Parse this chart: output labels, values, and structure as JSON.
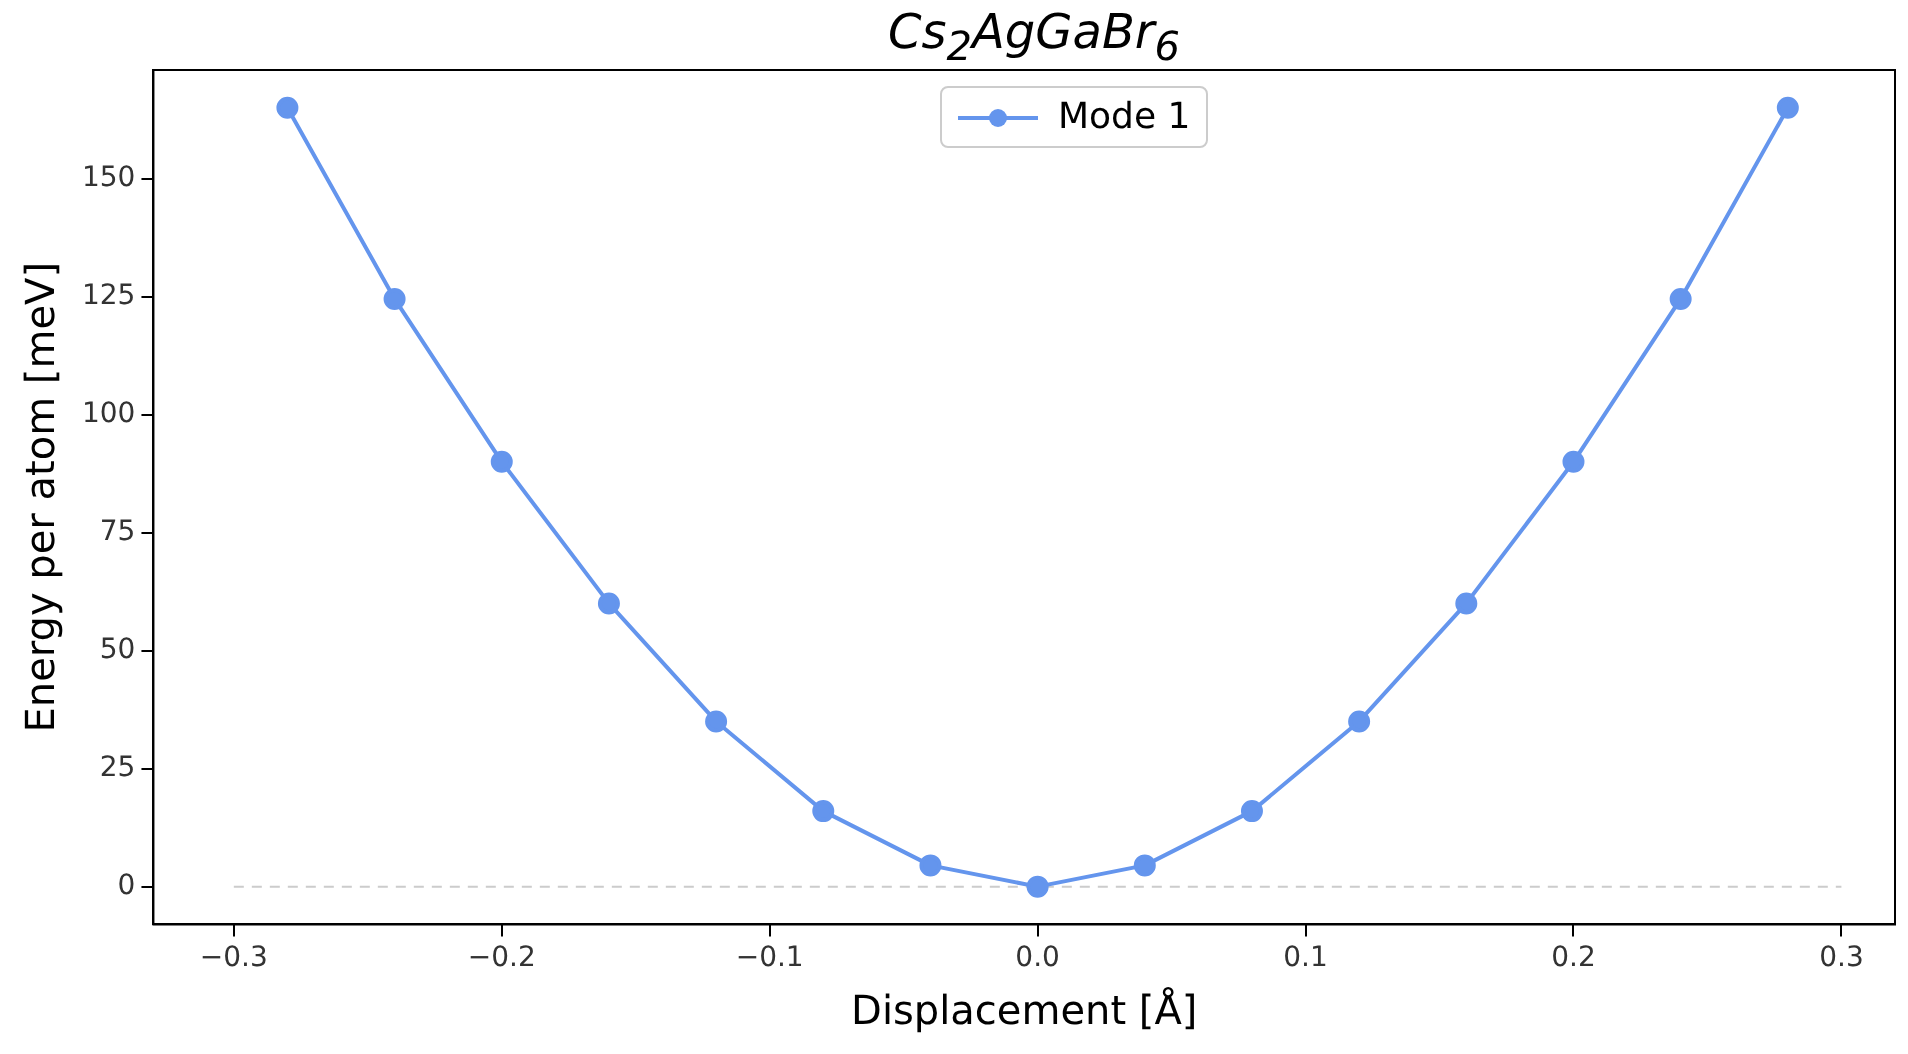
{
  "chart_data": {
    "type": "line",
    "title": "Cs$_{2}$AgGaBr$_{6}$",
    "xlabel": "Displacement [Å]",
    "ylabel": "Energy per atom [meV]",
    "series": [
      {
        "name": "Mode 1",
        "color": "#6495ed",
        "marker": "circle",
        "line_style": "solid",
        "x": [
          -0.28,
          -0.24,
          -0.2,
          -0.16,
          -0.12,
          -0.08,
          -0.04,
          0,
          0.04,
          0.08,
          0.12,
          0.16,
          0.2,
          0.24,
          0.28
        ],
        "values": [
          165,
          124.5,
          90,
          60,
          35,
          16,
          4.5,
          0,
          4.5,
          16,
          35,
          60,
          90,
          124.5,
          165
        ]
      },
      {
        "color": "#cccccc",
        "marker": "none",
        "line_style": "dashed",
        "x": [
          -0.3,
          0.3
        ],
        "values": [
          0,
          0
        ]
      }
    ],
    "xlim": [
      -0.33,
      0.32
    ],
    "ylim": [
      -8,
      173
    ],
    "xticks": [
      {
        "value": -0.3,
        "label": "−0.3"
      },
      {
        "value": -0.2,
        "label": "−0.2"
      },
      {
        "value": -0.1,
        "label": "−0.1"
      },
      {
        "value": 0,
        "label": "0.0"
      },
      0.1,
      0.2,
      0.3
    ],
    "yticks": [
      0,
      25,
      50,
      75,
      100,
      125,
      150
    ],
    "grid": false,
    "legend": "top"
  }
}
